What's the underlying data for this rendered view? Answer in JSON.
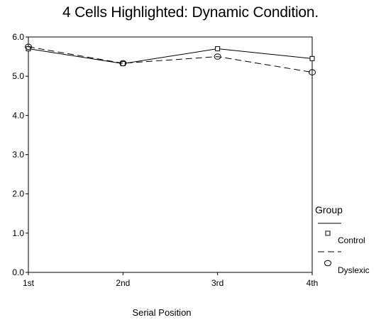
{
  "chart_data": {
    "type": "line",
    "title": "4 Cells Highlighted: Dynamic Condition.",
    "xlabel": "Serial Position",
    "ylabel": "",
    "categories": [
      "1st",
      "2nd",
      "3rd",
      "4th"
    ],
    "ylim": [
      0,
      6
    ],
    "yticks": [
      "0.0",
      "1.0",
      "2.0",
      "3.0",
      "4.0",
      "5.0",
      "6.0"
    ],
    "grid": false,
    "legend_position": "right",
    "legend_title": "Group",
    "series": [
      {
        "name": "Control",
        "values": [
          5.7,
          5.32,
          5.7,
          5.45
        ],
        "line_style": "solid",
        "marker": "square",
        "color": "#000000"
      },
      {
        "name": "Dyslexic",
        "values": [
          5.75,
          5.33,
          5.5,
          5.1
        ],
        "line_style": "dashed",
        "marker": "circle",
        "color": "#000000"
      }
    ]
  }
}
